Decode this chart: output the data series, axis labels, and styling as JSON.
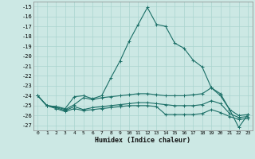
{
  "title": "",
  "xlabel": "Humidex (Indice chaleur)",
  "bg_color": "#cce8e4",
  "grid_color": "#aad4cf",
  "line_color": "#1a6e66",
  "xlim": [
    -0.5,
    23.5
  ],
  "ylim": [
    -27.5,
    -14.5
  ],
  "yticks": [
    -15,
    -16,
    -17,
    -18,
    -19,
    -20,
    -21,
    -22,
    -23,
    -24,
    -25,
    -26,
    -27
  ],
  "xticks": [
    0,
    1,
    2,
    3,
    4,
    5,
    6,
    7,
    8,
    9,
    10,
    11,
    12,
    13,
    14,
    15,
    16,
    17,
    18,
    19,
    20,
    21,
    22,
    23
  ],
  "lines": [
    {
      "x": [
        0,
        1,
        2,
        3,
        4,
        5,
        6,
        7,
        8,
        9,
        10,
        11,
        12,
        13,
        14,
        15,
        16,
        17,
        18,
        19,
        20,
        21,
        22,
        23
      ],
      "y": [
        -24.0,
        -25.0,
        -25.1,
        -25.3,
        -24.1,
        -24.0,
        -24.3,
        -24.0,
        -22.2,
        -20.5,
        -18.5,
        -16.8,
        -15.1,
        -16.8,
        -17.0,
        -18.7,
        -19.2,
        -20.4,
        -21.1,
        -23.2,
        -23.8,
        -25.4,
        -27.2,
        -25.9
      ]
    },
    {
      "x": [
        0,
        1,
        2,
        3,
        4,
        5,
        6,
        7,
        8,
        9,
        10,
        11,
        12,
        13,
        14,
        15,
        16,
        17,
        18,
        19,
        20,
        21,
        22,
        23
      ],
      "y": [
        -24.0,
        -25.0,
        -25.1,
        -25.4,
        -24.9,
        -24.2,
        -24.4,
        -24.2,
        -24.1,
        -24.0,
        -23.9,
        -23.8,
        -23.8,
        -23.9,
        -24.0,
        -24.0,
        -24.0,
        -23.9,
        -23.8,
        -23.2,
        -24.0,
        -25.4,
        -26.0,
        -25.9
      ]
    },
    {
      "x": [
        0,
        1,
        2,
        3,
        4,
        5,
        6,
        7,
        8,
        9,
        10,
        11,
        12,
        13,
        14,
        15,
        16,
        17,
        18,
        19,
        20,
        21,
        22,
        23
      ],
      "y": [
        -24.0,
        -25.0,
        -25.2,
        -25.5,
        -25.1,
        -25.4,
        -25.2,
        -25.1,
        -25.0,
        -24.9,
        -24.8,
        -24.7,
        -24.7,
        -24.8,
        -24.9,
        -25.0,
        -25.0,
        -25.0,
        -24.9,
        -24.5,
        -24.8,
        -25.8,
        -26.2,
        -26.1
      ]
    },
    {
      "x": [
        0,
        1,
        2,
        3,
        4,
        5,
        6,
        7,
        8,
        9,
        10,
        11,
        12,
        13,
        14,
        15,
        16,
        17,
        18,
        19,
        20,
        21,
        22,
        23
      ],
      "y": [
        -24.0,
        -25.0,
        -25.3,
        -25.6,
        -25.3,
        -25.5,
        -25.4,
        -25.3,
        -25.2,
        -25.1,
        -25.0,
        -25.0,
        -25.0,
        -25.1,
        -25.9,
        -25.9,
        -25.9,
        -25.9,
        -25.8,
        -25.4,
        -25.7,
        -26.1,
        -26.4,
        -26.3
      ]
    }
  ]
}
